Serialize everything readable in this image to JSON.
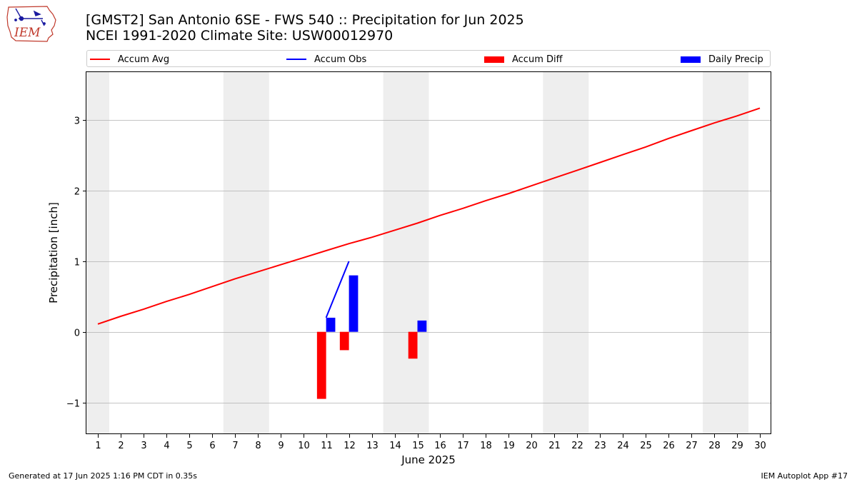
{
  "logo": {
    "text": "IEM"
  },
  "header": {
    "title_line1": "[GMST2] San Antonio 6SE - FWS 540 :: Precipitation for Jun 2025",
    "title_line2": "NCEI 1991-2020 Climate Site: USW00012970"
  },
  "colors": {
    "accum_avg": "#ff0000",
    "accum_obs": "#0000ff",
    "accum_diff": "#ff0000",
    "daily_precip": "#0000ff",
    "weekend_shade": "#eeeeee",
    "grid": "#b0b0b0"
  },
  "chart_data": {
    "type": "line",
    "xlabel": "June 2025",
    "ylabel": "Precipitation [inch]",
    "xlim": [
      0.5,
      30.5
    ],
    "ylim": [
      -1.45,
      3.68
    ],
    "x_ticks": [
      1,
      2,
      3,
      4,
      5,
      6,
      7,
      8,
      9,
      10,
      11,
      12,
      13,
      14,
      15,
      16,
      17,
      18,
      19,
      20,
      21,
      22,
      23,
      24,
      25,
      26,
      27,
      28,
      29,
      30
    ],
    "y_ticks": [
      -1,
      0,
      1,
      2,
      3
    ],
    "grid": "horizontal",
    "legend": [
      "Accum Avg",
      "Accum Obs",
      "Accum Diff",
      "Daily Precip"
    ],
    "weekend_spans": [
      [
        0.5,
        1.5
      ],
      [
        6.5,
        8.5
      ],
      [
        13.5,
        15.5
      ],
      [
        20.5,
        22.5
      ],
      [
        27.5,
        29.5
      ]
    ],
    "accum_avg": {
      "name": "Accum Avg",
      "x": [
        1,
        2,
        3,
        4,
        5,
        6,
        7,
        8,
        9,
        10,
        11,
        12,
        13,
        14,
        15,
        16,
        17,
        18,
        19,
        20,
        21,
        22,
        23,
        24,
        25,
        26,
        27,
        28,
        29,
        30
      ],
      "values": [
        0.11,
        0.22,
        0.32,
        0.43,
        0.53,
        0.64,
        0.75,
        0.85,
        0.95,
        1.05,
        1.15,
        1.25,
        1.34,
        1.44,
        1.54,
        1.65,
        1.75,
        1.86,
        1.96,
        2.07,
        2.18,
        2.29,
        2.4,
        2.51,
        2.62,
        2.74,
        2.85,
        2.96,
        3.06,
        3.17
      ]
    },
    "accum_obs": {
      "name": "Accum Obs",
      "x": [
        11,
        12
      ],
      "values": [
        0.2,
        1.0
      ]
    },
    "accum_diff": {
      "name": "Accum Diff",
      "x": [
        11,
        12,
        15
      ],
      "values": [
        -0.95,
        -0.26,
        -0.38
      ]
    },
    "daily_precip": {
      "name": "Daily Precip",
      "x": [
        11,
        12,
        15
      ],
      "values": [
        0.2,
        0.8,
        0.16
      ]
    }
  },
  "footer": {
    "left": "Generated at 17 Jun 2025 1:16 PM CDT in 0.35s",
    "right": "IEM Autoplot App #17"
  }
}
